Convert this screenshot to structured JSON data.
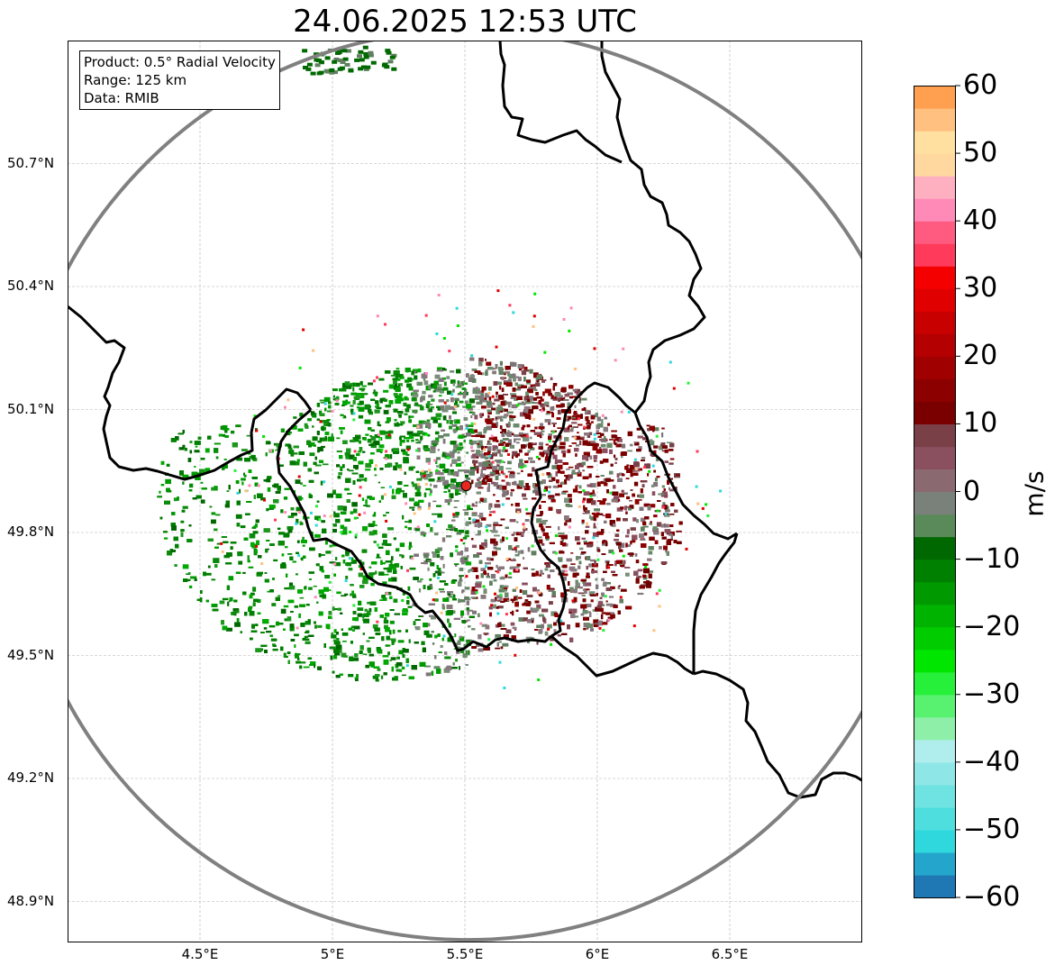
{
  "title": "24.06.2025 12:53 UTC",
  "info_box": {
    "product": "Product: 0.5° Radial Velocity",
    "range": "Range: 125 km",
    "data": "Data: RMIB"
  },
  "map": {
    "lon_range": [
      4.0,
      7.0
    ],
    "lat_range": [
      48.8,
      51.0
    ],
    "radar_site": {
      "lon": 5.505,
      "lat": 49.914
    },
    "range_km": 125,
    "x_ticks": [
      "4.5°E",
      "5°E",
      "5.5°E",
      "6°E",
      "6.5°E"
    ],
    "x_tick_values": [
      4.5,
      5.0,
      5.5,
      6.0,
      6.5
    ],
    "y_ticks": [
      "50.7°N",
      "50.4°N",
      "50.1°N",
      "49.8°N",
      "49.5°N",
      "49.2°N",
      "48.9°N"
    ],
    "y_tick_values": [
      50.7,
      50.4,
      50.1,
      49.8,
      49.5,
      49.2,
      48.9
    ],
    "grid": true,
    "range_ring_color": "#808080",
    "radar_marker_color": "#e8281e"
  },
  "colorbar": {
    "label": "m/s",
    "min": -60,
    "max": 60,
    "ticks": [
      "60",
      "50",
      "40",
      "30",
      "20",
      "10",
      "0",
      "−10",
      "−20",
      "−30",
      "−40",
      "−50",
      "−60"
    ],
    "tick_values": [
      60,
      50,
      40,
      30,
      20,
      10,
      0,
      -10,
      -20,
      -30,
      -40,
      -50,
      -60
    ],
    "colors_bottom_to_top": [
      "#1f77b4",
      "#24a6cc",
      "#2fd8dc",
      "#4fdede",
      "#6fe2e2",
      "#8fe6e6",
      "#b0eeee",
      "#8ef0a8",
      "#59f170",
      "#26f03a",
      "#00e600",
      "#00cc00",
      "#00b300",
      "#009900",
      "#008000",
      "#006800",
      "#5a8a5a",
      "#7a807a",
      "#8a6a70",
      "#8a5060",
      "#7a4048",
      "#7a0000",
      "#8c0000",
      "#a00000",
      "#b40000",
      "#c80000",
      "#e00000",
      "#f40000",
      "#ff3a5a",
      "#ff5a80",
      "#ff8ab8",
      "#ffb0c0",
      "#ffd8a0",
      "#ffe0a0",
      "#ffc080",
      "#ffa050"
    ]
  }
}
